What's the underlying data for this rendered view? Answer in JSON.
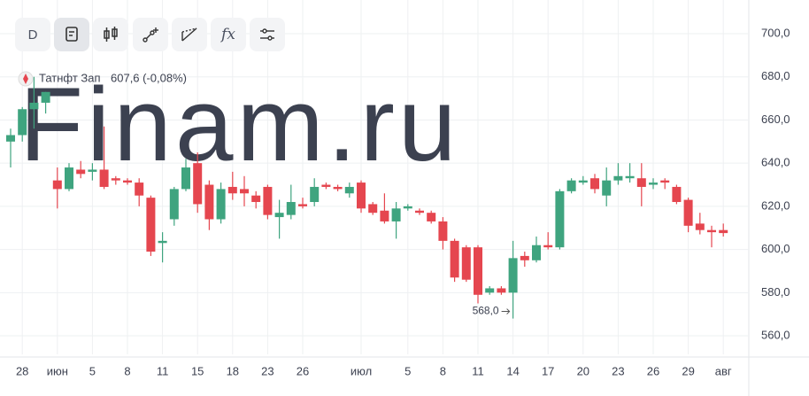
{
  "toolbar": {
    "interval": "D",
    "formula": "fx"
  },
  "chart_data": {
    "type": "candlestick",
    "watermark": "Finam.ru",
    "series_name": "Татнфт Зап",
    "price_label": "607,6 (-0,08%)",
    "annotation": "568,0",
    "up_color": "#3fa47f",
    "down_color": "#e5464f",
    "categories": [
      null,
      "28",
      null,
      null,
      "июн",
      null,
      null,
      "5",
      null,
      null,
      "8",
      null,
      null,
      "11",
      null,
      null,
      "15",
      null,
      null,
      "18",
      null,
      null,
      "23",
      null,
      null,
      "26",
      null,
      null,
      null,
      null,
      "июл",
      null,
      null,
      null,
      "5",
      null,
      null,
      "8",
      null,
      null,
      "11",
      null,
      null,
      "14",
      null,
      null,
      "17",
      null,
      null,
      "20",
      null,
      null,
      "23",
      null,
      null,
      "26",
      null,
      null,
      "29",
      null,
      null,
      "авг"
    ],
    "open": [
      650,
      653,
      665,
      668,
      632,
      628,
      637,
      636,
      637,
      633,
      632,
      631,
      624,
      603,
      614,
      628,
      640,
      630,
      614,
      629,
      628,
      625,
      629,
      615,
      616,
      621,
      622,
      630,
      629,
      626,
      631,
      621,
      618,
      613,
      619,
      618,
      617,
      613,
      604,
      601,
      601,
      580,
      582,
      580,
      597,
      595,
      602,
      601,
      627,
      631,
      633,
      625,
      632,
      633,
      633,
      630,
      632,
      629,
      623,
      612,
      609,
      609
    ],
    "high": [
      656,
      666,
      680,
      673,
      638,
      640,
      641,
      640,
      657,
      634,
      633,
      633,
      625,
      608,
      629,
      642,
      645,
      632,
      631,
      636,
      634,
      627,
      630,
      623,
      630,
      624,
      633,
      631,
      630,
      631,
      632,
      622,
      626,
      622,
      621,
      619,
      618,
      615,
      605,
      602,
      602,
      583,
      583,
      604,
      599,
      606,
      608,
      628,
      633,
      634,
      635,
      638,
      640,
      640,
      640,
      633,
      633,
      630,
      624,
      617,
      611,
      612
    ],
    "low": [
      638,
      650,
      656,
      663,
      619,
      627,
      633,
      632,
      628,
      630,
      630,
      620,
      597,
      594,
      611,
      627,
      617,
      609,
      612,
      623,
      620,
      619,
      614,
      605,
      614,
      619,
      620,
      628,
      627,
      624,
      617,
      616,
      612,
      605,
      618,
      616,
      612,
      600,
      585,
      585,
      575,
      579,
      579,
      568,
      592,
      594,
      600,
      600,
      626,
      630,
      626,
      620,
      630,
      631,
      620,
      628,
      628,
      621,
      608,
      607,
      601,
      606
    ],
    "close": [
      653,
      665,
      668,
      673,
      628,
      638,
      635,
      637,
      629,
      632,
      631,
      625,
      599,
      604,
      628,
      638,
      621,
      614,
      628,
      626,
      626,
      622,
      616,
      617,
      622,
      620,
      629,
      629,
      628,
      629,
      619,
      617,
      613,
      619,
      620,
      617,
      613,
      604,
      587,
      586,
      579,
      582,
      580,
      596,
      595,
      602,
      601,
      627,
      632,
      632,
      628,
      632,
      634,
      634,
      629,
      631,
      631,
      622,
      611,
      609,
      608,
      607.6
    ],
    "ylim": [
      551.4,
      715.6
    ],
    "yticks": [
      {
        "value": 560,
        "label": "560,0"
      },
      {
        "value": 580,
        "label": "580,0"
      },
      {
        "value": 600,
        "label": "600,0"
      },
      {
        "value": 620,
        "label": "620,0"
      },
      {
        "value": 640,
        "label": "640,0"
      },
      {
        "value": 660,
        "label": "660,0"
      },
      {
        "value": 680,
        "label": "680,0"
      },
      {
        "value": 700,
        "label": "700,0"
      }
    ],
    "grid": true
  }
}
